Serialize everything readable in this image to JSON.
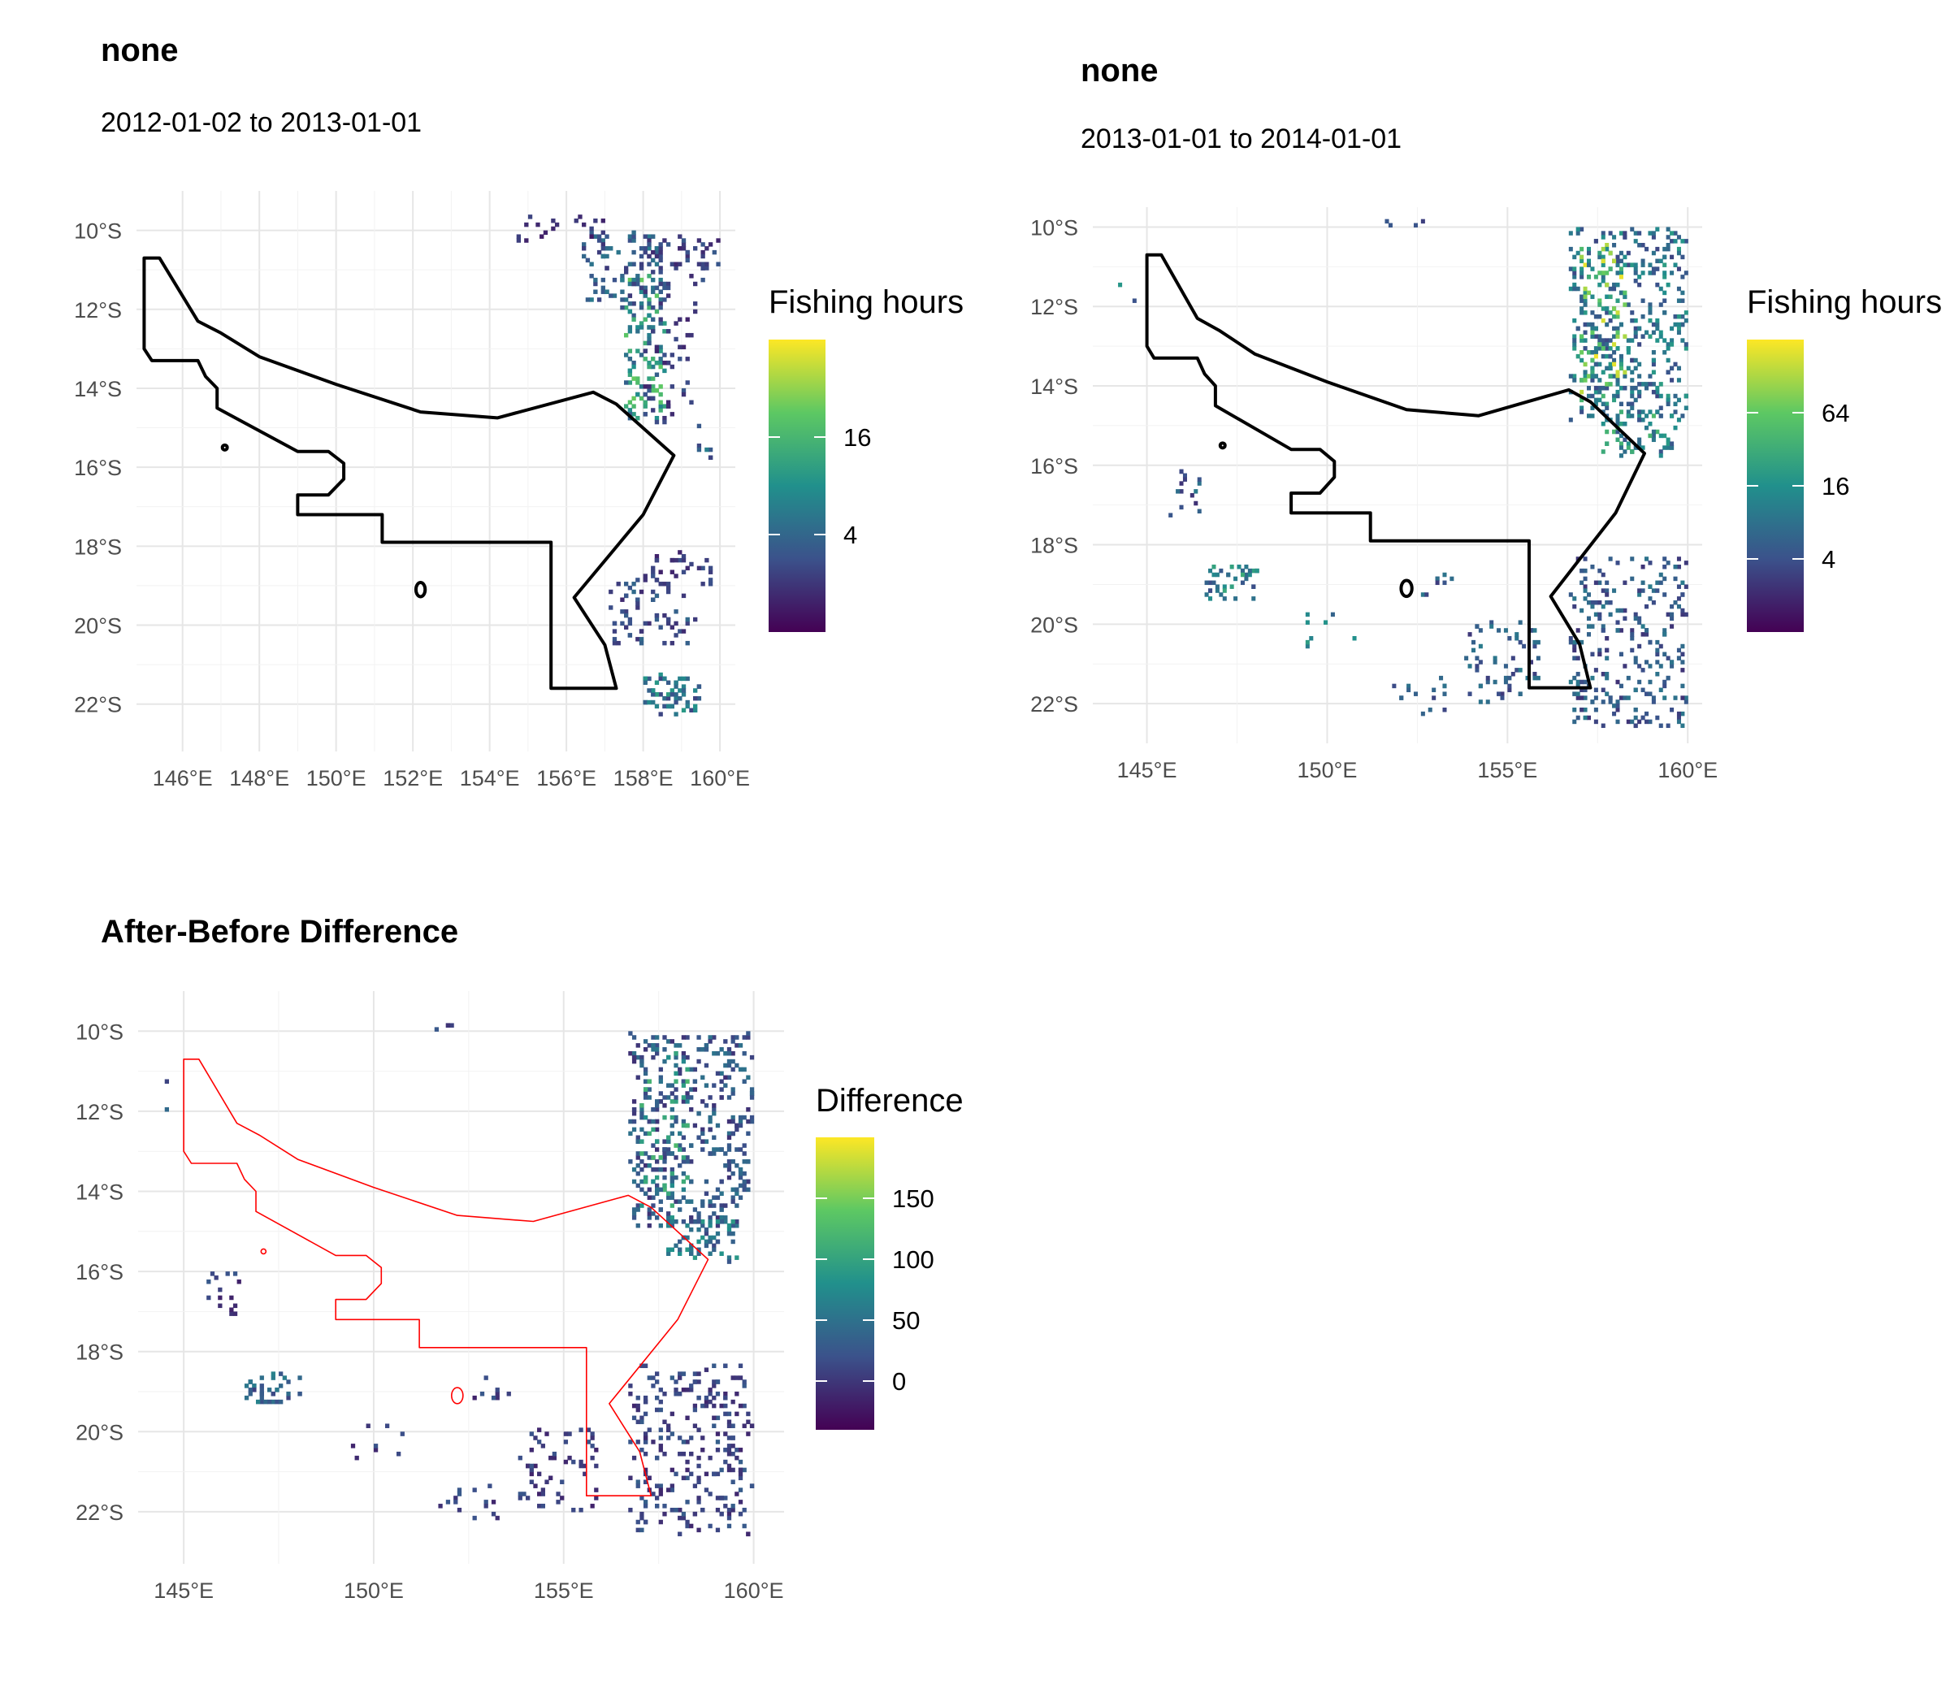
{
  "panels": [
    {
      "id": "p1",
      "title": "none",
      "subtitle": "2012-01-02 to 2013-01-01",
      "legend_title": "Fishing hours",
      "legend_ticks": [
        "16",
        "4"
      ],
      "x_ticks": [
        "146°E",
        "148°E",
        "150°E",
        "152°E",
        "154°E",
        "156°E",
        "158°E",
        "160°E"
      ],
      "y_ticks": [
        "10°S",
        "12°S",
        "14°S",
        "16°S",
        "18°S",
        "20°S",
        "22°S"
      ],
      "boundary_color": "#000000"
    },
    {
      "id": "p2",
      "title": "none",
      "subtitle": "2013-01-01 to 2014-01-01",
      "legend_title": "Fishing hours",
      "legend_ticks": [
        "64",
        "16",
        "4"
      ],
      "x_ticks": [
        "145°E",
        "150°E",
        "155°E",
        "160°E"
      ],
      "y_ticks": [
        "10°S",
        "12°S",
        "14°S",
        "16°S",
        "18°S",
        "20°S",
        "22°S"
      ],
      "boundary_color": "#000000"
    },
    {
      "id": "p3",
      "title": "After-Before Difference",
      "subtitle": "",
      "legend_title": "Difference",
      "legend_ticks": [
        "150",
        "100",
        "50",
        "0"
      ],
      "x_ticks": [
        "145°E",
        "150°E",
        "155°E",
        "160°E"
      ],
      "y_ticks": [
        "10°S",
        "12°S",
        "14°S",
        "16°S",
        "18°S",
        "20°S",
        "22°S"
      ],
      "boundary_color": "#ff0000"
    }
  ],
  "colorscale": [
    "#440154",
    "#3b528b",
    "#21908c",
    "#5dc863",
    "#fde725"
  ],
  "chart_data": [
    {
      "type": "heatmap",
      "panel": "p1",
      "xlim": [
        144.8,
        160.4
      ],
      "ylim": [
        -23.2,
        -9.0
      ],
      "fill_label": "Fishing hours",
      "fill_scale": "log",
      "fill_range": [
        1,
        64
      ],
      "legend_breaks": [
        4,
        16
      ],
      "boundary": [
        [
          145,
          -10.7
        ],
        [
          145.4,
          -10.7
        ],
        [
          146.4,
          -12.3
        ],
        [
          147.0,
          -12.6
        ],
        [
          148.0,
          -13.2
        ],
        [
          150.0,
          -13.9
        ],
        [
          152.2,
          -14.6
        ],
        [
          154.2,
          -14.75
        ],
        [
          156.7,
          -14.1
        ],
        [
          157.3,
          -14.4
        ],
        [
          158.8,
          -15.7
        ],
        [
          158.0,
          -17.2
        ],
        [
          156.2,
          -19.3
        ],
        [
          157.0,
          -20.5
        ],
        [
          157.3,
          -21.6
        ],
        [
          155.6,
          -21.6
        ],
        [
          155.6,
          -17.9
        ],
        [
          151.2,
          -17.9
        ],
        [
          151.2,
          -17.2
        ],
        [
          149.0,
          -17.2
        ],
        [
          149.0,
          -16.7
        ],
        [
          149.8,
          -16.7
        ],
        [
          150.2,
          -16.3
        ],
        [
          150.2,
          -15.9
        ],
        [
          149.8,
          -15.6
        ],
        [
          149.0,
          -15.6
        ],
        [
          146.9,
          -14.5
        ],
        [
          146.9,
          -14.0
        ],
        [
          146.6,
          -13.7
        ],
        [
          146.4,
          -13.3
        ],
        [
          145.2,
          -13.3
        ],
        [
          145.0,
          -13.0
        ],
        [
          145,
          -10.7
        ]
      ],
      "boundary_islands": [
        [
          152.2,
          -19.1,
          0.12,
          0.18
        ],
        [
          147.1,
          -15.5,
          0.05,
          0.05
        ]
      ],
      "clusters": [
        {
          "lon": 158.0,
          "lat": -13.0,
          "w": 0.6,
          "h": 2.2,
          "n": 120,
          "level": 0.55
        },
        {
          "lon": 157.5,
          "lat": -11.0,
          "w": 1.4,
          "h": 1.2,
          "n": 90,
          "level": 0.3
        },
        {
          "lon": 159.0,
          "lat": -10.6,
          "w": 1.4,
          "h": 0.5,
          "n": 50,
          "level": 0.2
        },
        {
          "lon": 158.7,
          "lat": -13.0,
          "w": 1.0,
          "h": 2.5,
          "n": 60,
          "level": 0.2
        },
        {
          "lon": 155.8,
          "lat": -10.0,
          "w": 1.4,
          "h": 0.4,
          "n": 18,
          "level": 0.15
        },
        {
          "lon": 158.2,
          "lat": -19.7,
          "w": 1.4,
          "h": 1.1,
          "n": 70,
          "level": 0.25
        },
        {
          "lon": 159.0,
          "lat": -18.6,
          "w": 1.0,
          "h": 0.6,
          "n": 30,
          "level": 0.2
        },
        {
          "lon": 158.7,
          "lat": -21.8,
          "w": 0.9,
          "h": 0.6,
          "n": 60,
          "level": 0.4
        },
        {
          "lon": 159.5,
          "lat": -15.7,
          "w": 0.3,
          "h": 0.3,
          "n": 6,
          "level": 0.35
        }
      ]
    },
    {
      "type": "heatmap",
      "panel": "p2",
      "xlim": [
        143.5,
        160.4
      ],
      "ylim": [
        -23.0,
        -9.5
      ],
      "fill_label": "Fishing hours",
      "fill_scale": "log",
      "fill_range": [
        1,
        256
      ],
      "legend_breaks": [
        4,
        16,
        64
      ],
      "boundary": [
        [
          145,
          -10.7
        ],
        [
          145.4,
          -10.7
        ],
        [
          146.4,
          -12.3
        ],
        [
          147.0,
          -12.6
        ],
        [
          148.0,
          -13.2
        ],
        [
          150.0,
          -13.9
        ],
        [
          152.2,
          -14.6
        ],
        [
          154.2,
          -14.75
        ],
        [
          156.7,
          -14.1
        ],
        [
          157.3,
          -14.4
        ],
        [
          158.8,
          -15.7
        ],
        [
          158.0,
          -17.2
        ],
        [
          156.2,
          -19.3
        ],
        [
          157.0,
          -20.5
        ],
        [
          157.3,
          -21.6
        ],
        [
          155.6,
          -21.6
        ],
        [
          155.6,
          -17.9
        ],
        [
          151.2,
          -17.9
        ],
        [
          151.2,
          -17.2
        ],
        [
          149.0,
          -17.2
        ],
        [
          149.0,
          -16.7
        ],
        [
          149.8,
          -16.7
        ],
        [
          150.2,
          -16.3
        ],
        [
          150.2,
          -15.9
        ],
        [
          149.8,
          -15.6
        ],
        [
          149.0,
          -15.6
        ],
        [
          146.9,
          -14.5
        ],
        [
          146.9,
          -14.0
        ],
        [
          146.6,
          -13.7
        ],
        [
          146.4,
          -13.3
        ],
        [
          145.2,
          -13.3
        ],
        [
          145.0,
          -13.0
        ],
        [
          145,
          -10.7
        ]
      ],
      "boundary_islands": [
        [
          152.2,
          -19.1,
          0.15,
          0.2
        ],
        [
          147.1,
          -15.5,
          0.05,
          0.05
        ]
      ],
      "clusters": [
        {
          "lon": 158.3,
          "lat": -12.5,
          "w": 2.0,
          "h": 3.0,
          "n": 380,
          "level": 0.4
        },
        {
          "lon": 157.6,
          "lat": -12.5,
          "w": 0.8,
          "h": 2.5,
          "n": 90,
          "level": 0.7
        },
        {
          "lon": 158.6,
          "lat": -15.2,
          "w": 1.2,
          "h": 0.7,
          "n": 60,
          "level": 0.5
        },
        {
          "lon": 158.3,
          "lat": -20.5,
          "w": 2.0,
          "h": 2.7,
          "n": 260,
          "level": 0.3
        },
        {
          "lon": 154.8,
          "lat": -21.0,
          "w": 1.3,
          "h": 1.3,
          "n": 60,
          "level": 0.3
        },
        {
          "lon": 147.3,
          "lat": -19.0,
          "w": 0.9,
          "h": 0.5,
          "n": 40,
          "level": 0.45
        },
        {
          "lon": 146.0,
          "lat": -16.7,
          "w": 0.5,
          "h": 0.8,
          "n": 15,
          "level": 0.3
        },
        {
          "lon": 152.5,
          "lat": -21.8,
          "w": 1.0,
          "h": 0.6,
          "n": 15,
          "level": 0.3
        },
        {
          "lon": 150.0,
          "lat": -20.2,
          "w": 0.9,
          "h": 0.6,
          "n": 8,
          "level": 0.4
        },
        {
          "lon": 153.0,
          "lat": -19.0,
          "w": 0.6,
          "h": 0.4,
          "n": 8,
          "level": 0.3
        },
        {
          "lon": 152.0,
          "lat": -9.9,
          "w": 0.8,
          "h": 0.1,
          "n": 4,
          "level": 0.2
        },
        {
          "lon": 144.4,
          "lat": -12.5,
          "w": 0.5,
          "h": 1.5,
          "n": 2,
          "level": 0.45
        }
      ]
    },
    {
      "type": "heatmap",
      "panel": "p3",
      "xlim": [
        143.8,
        160.8
      ],
      "ylim": [
        -23.3,
        -9.0
      ],
      "fill_label": "Difference",
      "fill_scale": "linear",
      "fill_range": [
        -40,
        200
      ],
      "legend_breaks": [
        0,
        50,
        100,
        150
      ],
      "boundary": [
        [
          145,
          -10.7
        ],
        [
          145.4,
          -10.7
        ],
        [
          146.4,
          -12.3
        ],
        [
          147.0,
          -12.6
        ],
        [
          148.0,
          -13.2
        ],
        [
          150.0,
          -13.9
        ],
        [
          152.2,
          -14.6
        ],
        [
          154.2,
          -14.75
        ],
        [
          156.7,
          -14.1
        ],
        [
          157.3,
          -14.4
        ],
        [
          158.8,
          -15.7
        ],
        [
          158.0,
          -17.2
        ],
        [
          156.2,
          -19.3
        ],
        [
          157.0,
          -20.5
        ],
        [
          157.3,
          -21.6
        ],
        [
          155.6,
          -21.6
        ],
        [
          155.6,
          -17.9
        ],
        [
          151.2,
          -17.9
        ],
        [
          151.2,
          -17.2
        ],
        [
          149.0,
          -17.2
        ],
        [
          149.0,
          -16.7
        ],
        [
          149.8,
          -16.7
        ],
        [
          150.2,
          -16.3
        ],
        [
          150.2,
          -15.9
        ],
        [
          149.8,
          -15.6
        ],
        [
          149.0,
          -15.6
        ],
        [
          146.9,
          -14.5
        ],
        [
          146.9,
          -14.0
        ],
        [
          146.6,
          -13.7
        ],
        [
          146.4,
          -13.3
        ],
        [
          145.2,
          -13.3
        ],
        [
          145.0,
          -13.0
        ],
        [
          145,
          -10.7
        ]
      ],
      "boundary_islands": [
        [
          152.2,
          -19.1,
          0.15,
          0.2
        ],
        [
          147.1,
          -15.5,
          0.02,
          0.02
        ]
      ],
      "clusters": [
        {
          "lon": 158.3,
          "lat": -12.5,
          "w": 2.0,
          "h": 3.0,
          "n": 380,
          "level": 0.28
        },
        {
          "lon": 157.6,
          "lat": -12.5,
          "w": 0.8,
          "h": 2.5,
          "n": 80,
          "level": 0.5
        },
        {
          "lon": 158.6,
          "lat": -15.2,
          "w": 1.2,
          "h": 0.7,
          "n": 60,
          "level": 0.4
        },
        {
          "lon": 158.3,
          "lat": -20.5,
          "w": 2.0,
          "h": 2.7,
          "n": 260,
          "level": 0.22
        },
        {
          "lon": 154.8,
          "lat": -21.0,
          "w": 1.3,
          "h": 1.3,
          "n": 60,
          "level": 0.2
        },
        {
          "lon": 147.3,
          "lat": -19.0,
          "w": 0.9,
          "h": 0.5,
          "n": 40,
          "level": 0.32
        },
        {
          "lon": 146.0,
          "lat": -16.7,
          "w": 0.5,
          "h": 0.8,
          "n": 15,
          "level": 0.2
        },
        {
          "lon": 152.5,
          "lat": -21.8,
          "w": 1.0,
          "h": 0.6,
          "n": 15,
          "level": 0.2
        },
        {
          "lon": 150.0,
          "lat": -20.2,
          "w": 0.9,
          "h": 0.6,
          "n": 8,
          "level": 0.2
        },
        {
          "lon": 153.0,
          "lat": -19.0,
          "w": 0.6,
          "h": 0.4,
          "n": 8,
          "level": 0.2
        },
        {
          "lon": 152.0,
          "lat": -9.9,
          "w": 0.8,
          "h": 0.1,
          "n": 4,
          "level": 0.2
        },
        {
          "lon": 144.4,
          "lat": -12.5,
          "w": 0.5,
          "h": 1.5,
          "n": 2,
          "level": 0.25
        }
      ]
    }
  ]
}
